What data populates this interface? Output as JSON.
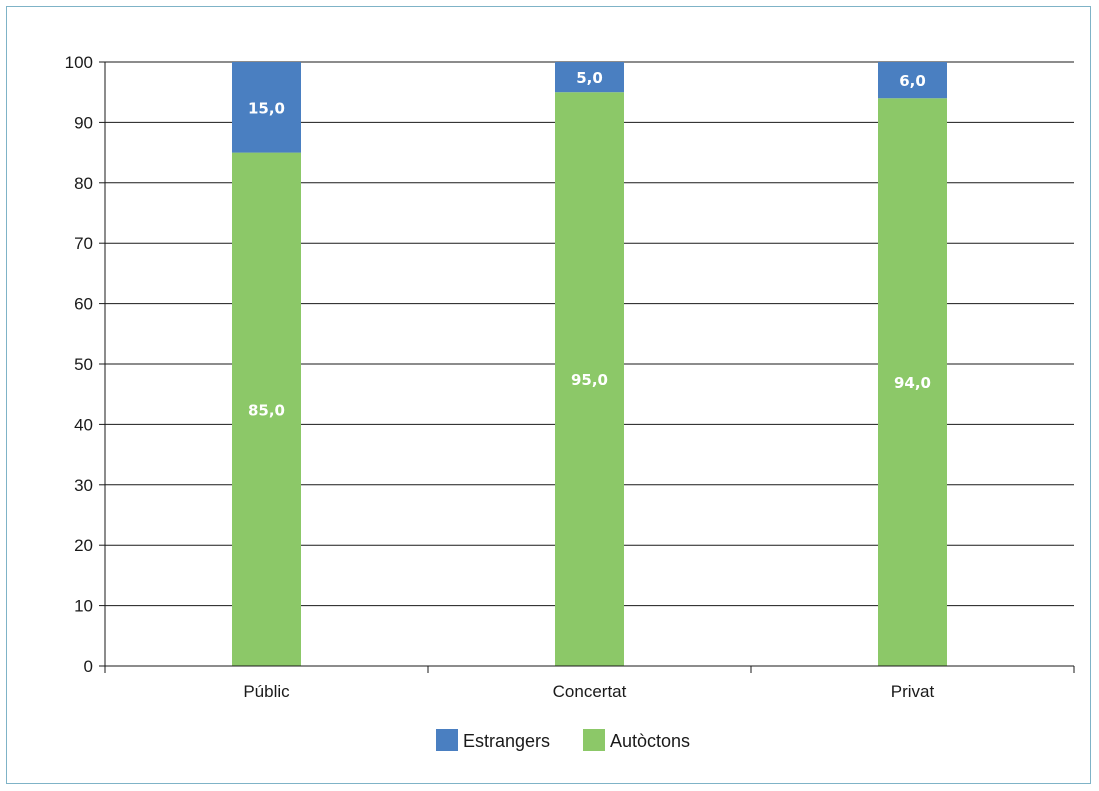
{
  "chart_data": {
    "type": "bar",
    "stacked": true,
    "categories": [
      "Públic",
      "Concertat",
      "Privat"
    ],
    "series": [
      {
        "name": "Autòctons",
        "values": [
          85.0,
          95.0,
          94.0
        ],
        "color": "#8cc868",
        "data_labels": [
          "85,0",
          "95,0",
          "94,0"
        ]
      },
      {
        "name": "Estrangers",
        "values": [
          15.0,
          5.0,
          6.0
        ],
        "color": "#4a7fc1",
        "data_labels": [
          "15,0",
          "5,0",
          "6,0"
        ]
      }
    ],
    "ylim": [
      0,
      100
    ],
    "yticks": [
      0,
      10,
      20,
      30,
      40,
      50,
      60,
      70,
      80,
      90,
      100
    ],
    "ytick_labels": [
      "0",
      "10",
      "20",
      "30",
      "40",
      "50",
      "60",
      "70",
      "80",
      "90",
      "100"
    ],
    "grid": true,
    "legend": {
      "placement": "bottom",
      "order": [
        "Estrangers",
        "Autòctons"
      ]
    },
    "title": "",
    "xlabel": "",
    "ylabel": ""
  }
}
